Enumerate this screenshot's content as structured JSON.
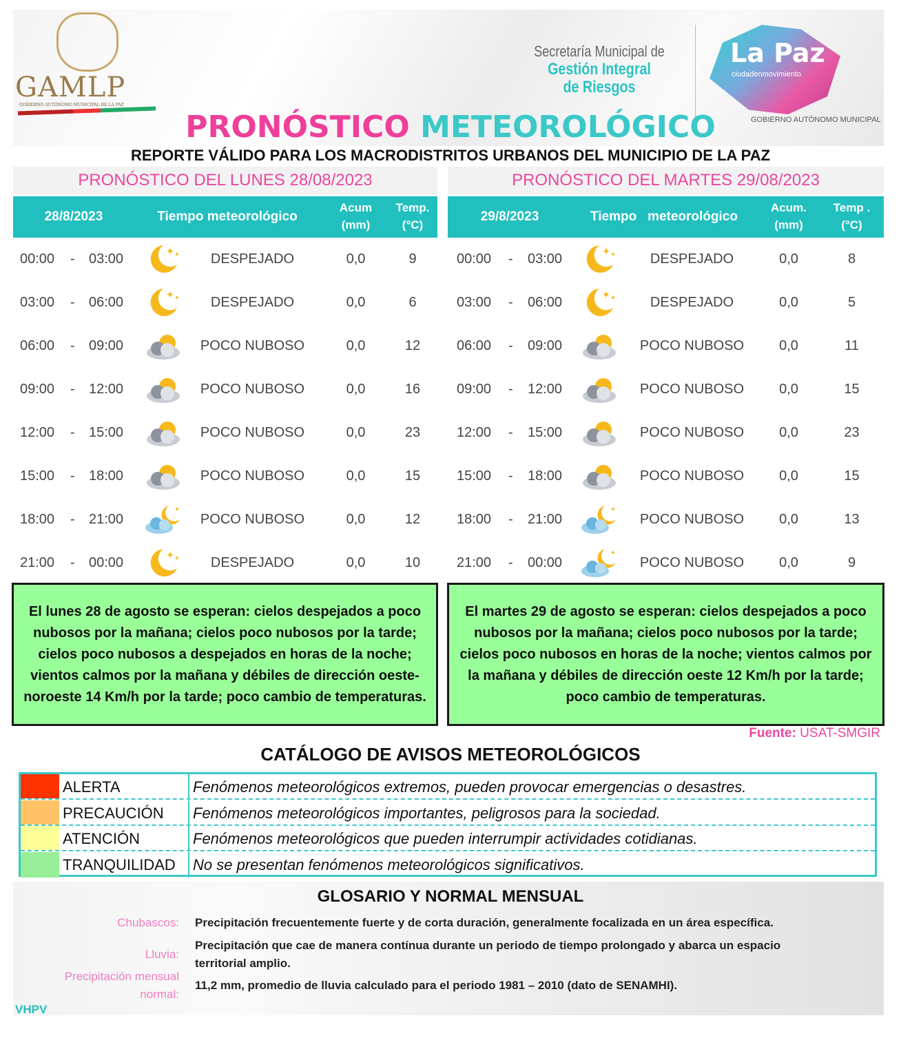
{
  "header": {
    "gamlp": "GAMLP",
    "gamlp_sub": "GOBIERNO AUTÓNOMO MUNICIPAL DE LA PAZ",
    "secretaria_l1": "Secretaría Municipal de",
    "secretaria_l2": "Gestión Integral",
    "secretaria_l3": "de Riesgos",
    "lapaz_logo": "La Paz",
    "lapaz_slogan": "ciudadenmovimiento",
    "lapaz_gov": "GOBIERNO AUTÓNOMO MUNICIPAL",
    "title_part1": "PRONÓSTICO",
    "title_part2": "METEOROLÓGICO",
    "subtitle": "REPORTE VÁLIDO PARA LOS MACRODISTRITOS URBANOS DEL MUNICIPIO DE LA PAZ"
  },
  "colors": {
    "pink": "#e8489e",
    "teal": "#22bfbf",
    "summary_green": "#99ff99",
    "alerta": "#ff3300",
    "precaucion": "#ffc266",
    "atencion": "#ffff99",
    "tranquilidad": "#99ee99"
  },
  "days": [
    {
      "title": "PRONÓSTICO DEL LUNES 28/08/2023",
      "headers": {
        "date": "28/8/2023",
        "weather": "Tiempo meteorológico",
        "acum": "Acum",
        "acum_unit": "(mm)",
        "temp": "Temp.",
        "temp_unit": "(°C)"
      },
      "rows": [
        {
          "start": "00:00",
          "sep": "-",
          "end": "03:00",
          "icon": "moon-icon",
          "cond": "DESPEJADO",
          "acum": "0,0",
          "temp": "9"
        },
        {
          "start": "03:00",
          "sep": "-",
          "end": "06:00",
          "icon": "moon-icon",
          "cond": "DESPEJADO",
          "acum": "0,0",
          "temp": "6"
        },
        {
          "start": "06:00",
          "sep": "-",
          "end": "09:00",
          "icon": "partly-cloudy-icon",
          "cond": "POCO NUBOSO",
          "acum": "0,0",
          "temp": "12"
        },
        {
          "start": "09:00",
          "sep": "-",
          "end": "12:00",
          "icon": "partly-cloudy-icon",
          "cond": "POCO NUBOSO",
          "acum": "0,0",
          "temp": "16"
        },
        {
          "start": "12:00",
          "sep": "-",
          "end": "15:00",
          "icon": "partly-cloudy-icon",
          "cond": "POCO NUBOSO",
          "acum": "0,0",
          "temp": "23"
        },
        {
          "start": "15:00",
          "sep": "-",
          "end": "18:00",
          "icon": "partly-cloudy-icon",
          "cond": "POCO NUBOSO",
          "acum": "0,0",
          "temp": "15"
        },
        {
          "start": "18:00",
          "sep": "-",
          "end": "21:00",
          "icon": "night-cloudy-icon",
          "cond": "POCO NUBOSO",
          "acum": "0,0",
          "temp": "12"
        },
        {
          "start": "21:00",
          "sep": "-",
          "end": "00:00",
          "icon": "moon-icon",
          "cond": "DESPEJADO",
          "acum": "0,0",
          "temp": "10"
        }
      ],
      "summary": "El lunes 28 de agosto se esperan:  cielos despejados a poco nubosos por la mañana; cielos poco nubosos por la tarde; cielos poco nubosos a despejados en horas de la noche; vientos calmos por la mañana y débiles de dirección oeste-noroeste 14 Km/h por la tarde; poco cambio de temperaturas."
    },
    {
      "title": "PRONÓSTICO DEL MARTES 29/08/2023",
      "headers": {
        "date": "29/8/2023",
        "weather": "Tiempo   meteorológico",
        "acum": "Acum.",
        "acum_unit": "(mm)",
        "temp": "Temp .",
        "temp_unit": "(°C)"
      },
      "rows": [
        {
          "start": "00:00",
          "sep": "-",
          "end": "03:00",
          "icon": "moon-icon",
          "cond": "DESPEJADO",
          "acum": "0,0",
          "temp": "8"
        },
        {
          "start": "03:00",
          "sep": "-",
          "end": "06:00",
          "icon": "moon-icon",
          "cond": "DESPEJADO",
          "acum": "0,0",
          "temp": "5"
        },
        {
          "start": "06:00",
          "sep": "-",
          "end": "09:00",
          "icon": "partly-cloudy-icon",
          "cond": "POCO NUBOSO",
          "acum": "0,0",
          "temp": "11"
        },
        {
          "start": "09:00",
          "sep": "-",
          "end": "12:00",
          "icon": "partly-cloudy-icon",
          "cond": "POCO NUBOSO",
          "acum": "0,0",
          "temp": "15"
        },
        {
          "start": "12:00",
          "sep": "-",
          "end": "15:00",
          "icon": "partly-cloudy-icon",
          "cond": "POCO NUBOSO",
          "acum": "0,0",
          "temp": "23"
        },
        {
          "start": "15:00",
          "sep": "-",
          "end": "18:00",
          "icon": "partly-cloudy-icon",
          "cond": "POCO NUBOSO",
          "acum": "0,0",
          "temp": "15"
        },
        {
          "start": "18:00",
          "sep": "-",
          "end": "21:00",
          "icon": "night-cloudy-icon",
          "cond": "POCO NUBOSO",
          "acum": "0,0",
          "temp": "13"
        },
        {
          "start": "21:00",
          "sep": "-",
          "end": "00:00",
          "icon": "night-cloudy-icon",
          "cond": "POCO NUBOSO",
          "acum": "0,0",
          "temp": "9"
        }
      ],
      "summary": "El martes 29 de agosto se esperan:  cielos despejados a poco nubosos por la mañana; cielos poco nubosos por la tarde; cielos poco nubosos en horas de la noche; vientos calmos por la mañana y débiles de dirección oeste 12 Km/h por la tarde; poco cambio de temperaturas."
    }
  ],
  "source": {
    "label": "Fuente:",
    "value": "USAT-SMGIR"
  },
  "catalog": {
    "title": "CATÁLOGO DE AVISOS METEOROLÓGICOS",
    "items": [
      {
        "level": "ALERTA",
        "color": "#ff3300",
        "desc": "Fenómenos meteorológicos extremos, pueden provocar emergencias o desastres."
      },
      {
        "level": "PRECAUCIÓN",
        "color": "#ffc266",
        "desc": "Fenómenos meteorológicos importantes, peligrosos para la sociedad."
      },
      {
        "level": "ATENCIÓN",
        "color": "#ffff99",
        "desc": "Fenómenos meteorológicos que pueden interrumpir actividades cotidianas."
      },
      {
        "level": "TRANQUILIDAD",
        "color": "#99ee99",
        "desc": "No se presentan fenómenos meteorológicos significativos."
      }
    ]
  },
  "glossary": {
    "title": "GLOSARIO Y NORMAL MENSUAL",
    "items": [
      {
        "term": "Chubascos:",
        "def": "Precipitación frecuentemente fuerte y de corta duración, generalmente focalizada en un área específica."
      },
      {
        "term": "Lluvia:",
        "def": "Precipitación que cae de manera contínua durante un periodo de tiempo prolongado y abarca un espacio territorial amplio."
      },
      {
        "term": "Precipitación mensual normal:",
        "def": "11,2 mm, promedio de lluvia calculado para el periodo 1981 – 2010 (dato de SENAMHI)."
      }
    ]
  },
  "author": "VHPV"
}
